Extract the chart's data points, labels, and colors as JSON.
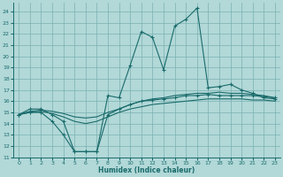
{
  "xlabel": "Humidex (Indice chaleur)",
  "bg_color": "#b2d8d8",
  "grid_color": "#7ab0b0",
  "line_color": "#1a6b6b",
  "xlim": [
    -0.5,
    23.5
  ],
  "ylim": [
    11,
    24.8
  ],
  "yticks": [
    11,
    12,
    13,
    14,
    15,
    16,
    17,
    18,
    19,
    20,
    21,
    22,
    23,
    24
  ],
  "xticks": [
    0,
    1,
    2,
    3,
    4,
    5,
    6,
    7,
    8,
    9,
    10,
    11,
    12,
    13,
    14,
    15,
    16,
    17,
    18,
    19,
    20,
    21,
    22,
    23
  ],
  "spiky_x": [
    0,
    1,
    2,
    3,
    4,
    5,
    6,
    7,
    8,
    9,
    10,
    11,
    12,
    13,
    14,
    15,
    16,
    17,
    18,
    19,
    20,
    21,
    22,
    23
  ],
  "spiky_y": [
    14.8,
    15.3,
    15.3,
    14.8,
    14.2,
    11.5,
    11.5,
    11.5,
    16.5,
    16.3,
    19.2,
    22.2,
    21.7,
    18.8,
    22.7,
    23.3,
    24.3,
    17.2,
    17.3,
    17.5,
    17.0,
    16.7,
    16.3,
    16.2
  ],
  "dip_x": [
    0,
    1,
    2,
    3,
    4,
    5,
    6,
    7,
    8,
    9,
    10,
    11,
    12,
    13,
    14,
    15,
    16,
    17,
    18,
    19,
    20,
    21,
    22,
    23
  ],
  "dip_y": [
    14.8,
    15.0,
    15.0,
    14.2,
    13.0,
    11.5,
    11.5,
    11.5,
    14.8,
    15.3,
    15.7,
    16.0,
    16.1,
    16.2,
    16.3,
    16.5,
    16.5,
    16.6,
    16.5,
    16.5,
    16.5,
    16.5,
    16.4,
    16.3
  ],
  "smooth_upper_x": [
    0,
    1,
    2,
    3,
    4,
    5,
    6,
    7,
    8,
    9,
    10,
    11,
    12,
    13,
    14,
    15,
    16,
    17,
    18,
    19,
    20,
    21,
    22,
    23
  ],
  "smooth_upper_y": [
    14.8,
    15.1,
    15.2,
    15.1,
    14.9,
    14.6,
    14.5,
    14.6,
    15.0,
    15.3,
    15.7,
    16.0,
    16.2,
    16.3,
    16.5,
    16.6,
    16.7,
    16.7,
    16.8,
    16.7,
    16.7,
    16.6,
    16.5,
    16.3
  ],
  "smooth_lower_x": [
    0,
    1,
    2,
    3,
    4,
    5,
    6,
    7,
    8,
    9,
    10,
    11,
    12,
    13,
    14,
    15,
    16,
    17,
    18,
    19,
    20,
    21,
    22,
    23
  ],
  "smooth_lower_y": [
    14.8,
    15.0,
    15.1,
    14.9,
    14.6,
    14.2,
    14.0,
    14.2,
    14.6,
    15.0,
    15.3,
    15.5,
    15.7,
    15.8,
    15.9,
    16.0,
    16.1,
    16.2,
    16.2,
    16.2,
    16.2,
    16.1,
    16.1,
    16.0
  ]
}
